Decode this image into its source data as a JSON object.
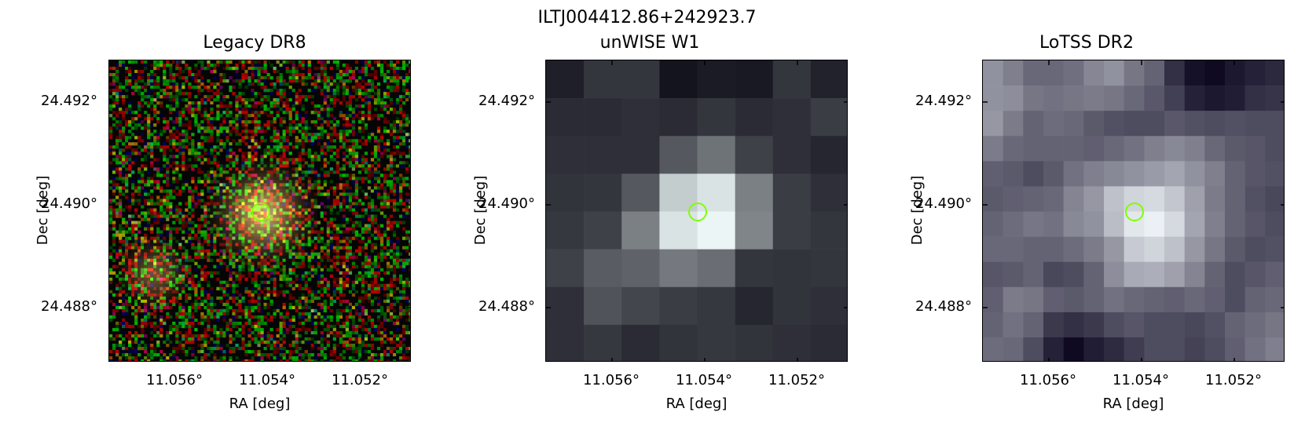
{
  "figure": {
    "title": "ILTJ004412.86+242923.7",
    "marker_color": "#7fff00"
  },
  "panels": [
    {
      "title": "Legacy DR8",
      "xlabel": "RA [deg]",
      "ylabel": "Dec [deg]",
      "xticks": [
        "11.056°",
        "11.054°",
        "11.052°"
      ],
      "yticks": [
        "24.492°",
        "24.490°",
        "24.488°"
      ]
    },
    {
      "title": "unWISE W1",
      "xlabel": "RA [deg]",
      "ylabel": "Dec [deg]",
      "xticks": [
        "11.056°",
        "11.054°",
        "11.052°"
      ],
      "yticks": [
        "24.492°",
        "24.490°",
        "24.488°"
      ]
    },
    {
      "title": "LoTSS DR2",
      "xlabel": "RA [deg]",
      "ylabel": "Dec [deg]",
      "xticks": [
        "11.056°",
        "11.054°",
        "11.052°"
      ],
      "yticks": [
        "24.492°",
        "24.490°",
        "24.488°"
      ]
    }
  ]
}
